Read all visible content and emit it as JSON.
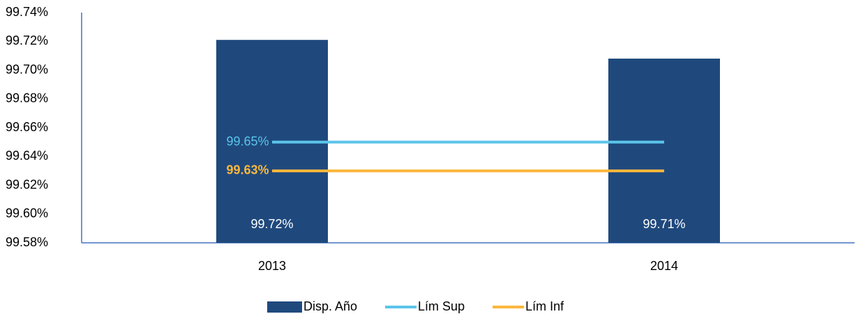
{
  "chart_data": {
    "type": "bar",
    "categories": [
      "2013",
      "2014"
    ],
    "ylim": [
      99.58,
      99.74
    ],
    "yticks": [
      {
        "value": 99.58,
        "label": "99.58%"
      },
      {
        "value": 99.6,
        "label": "99.60%"
      },
      {
        "value": 99.62,
        "label": "99.62%"
      },
      {
        "value": 99.64,
        "label": "99.64%"
      },
      {
        "value": 99.66,
        "label": "99.66%"
      },
      {
        "value": 99.68,
        "label": "99.68%"
      },
      {
        "value": 99.7,
        "label": "99.70%"
      },
      {
        "value": 99.72,
        "label": "99.72%"
      },
      {
        "value": 99.74,
        "label": "99.74%"
      }
    ],
    "grid": false,
    "legend": "bottom",
    "series": [
      {
        "name": "Disp. Año",
        "type": "bar",
        "color": "#1f497d",
        "values": [
          99.721,
          99.708
        ],
        "value_labels": [
          "99.72%",
          "99.71%"
        ]
      },
      {
        "name": "Lím Sup",
        "type": "line",
        "color": "#5bc5ea",
        "values": [
          99.65,
          99.65
        ],
        "value_labels": [
          "99.65%",
          null
        ]
      },
      {
        "name": "Lím Inf",
        "type": "line",
        "color": "#fbb73c",
        "values": [
          99.63,
          99.63
        ],
        "value_labels": [
          "99.63%",
          null
        ],
        "bold_labels": true
      }
    ]
  }
}
